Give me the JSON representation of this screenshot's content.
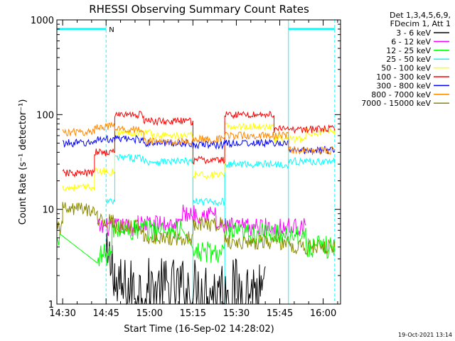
{
  "chart_data": {
    "type": "line",
    "title": "RHESSI Observing Summary Count Rates",
    "xlabel": "Start Time (16-Sep-02 14:28:02)",
    "ylabel": "Count Rate (s⁻¹ detector⁻¹)",
    "yscale": "log",
    "ylim": [
      1,
      1000
    ],
    "xlim_minutes_after_14_28": [
      0,
      98
    ],
    "x_ticks": [
      "14:30",
      "14:45",
      "15:00",
      "15:15",
      "15:30",
      "15:45",
      "16:00"
    ],
    "y_ticks": [
      "1",
      "10",
      "100",
      "1000"
    ],
    "legend_header": [
      "Det 1,3,4,5,6,9,",
      "FDecim 1, Att 1"
    ],
    "legend_position": "top-right",
    "series": [
      {
        "name": "3 - 6 keV",
        "color": "#000000",
        "segments": [
          [
            17,
            20,
            2.6
          ],
          [
            20,
            70,
            1.4
          ],
          [
            70,
            72,
            1.2
          ]
        ]
      },
      {
        "name": "6 - 12 keV",
        "color": "#ff00ff",
        "segments": [
          [
            14,
            28,
            6.5
          ],
          [
            28,
            43,
            7.0
          ],
          [
            43,
            55,
            9.0
          ],
          [
            55,
            86,
            6.5
          ]
        ]
      },
      {
        "name": "12 - 25 keV",
        "color": "#00ff00",
        "segments": [
          [
            0,
            1,
            4.5
          ],
          [
            14,
            19,
            3.3
          ],
          [
            19,
            43,
            6.0
          ],
          [
            47,
            58,
            3.5
          ],
          [
            58,
            86,
            5.5
          ],
          [
            86,
            96,
            4.0
          ]
        ]
      },
      {
        "name": "25 - 50 keV",
        "color": "#00ffff",
        "segments": [
          [
            17,
            20,
            12
          ],
          [
            20,
            30,
            35
          ],
          [
            30,
            47,
            32
          ],
          [
            47,
            58,
            12
          ],
          [
            58,
            80,
            30
          ],
          [
            80,
            96,
            32
          ]
        ]
      },
      {
        "name": "50 - 100 keV",
        "color": "#ffff00",
        "segments": [
          [
            2,
            13,
            17
          ],
          [
            13,
            20,
            25
          ],
          [
            20,
            33,
            65
          ],
          [
            33,
            47,
            60
          ],
          [
            47,
            58,
            23
          ],
          [
            58,
            75,
            75
          ],
          [
            75,
            86,
            55
          ],
          [
            86,
            96,
            65
          ]
        ]
      },
      {
        "name": "100 - 300 keV",
        "color": "#ff0000",
        "segments": [
          [
            2,
            13,
            24
          ],
          [
            13,
            20,
            40
          ],
          [
            20,
            30,
            100
          ],
          [
            30,
            47,
            85
          ],
          [
            47,
            58,
            33
          ],
          [
            58,
            75,
            100
          ],
          [
            75,
            86,
            70
          ],
          [
            86,
            96,
            70
          ]
        ]
      },
      {
        "name": "300 - 800 keV",
        "color": "#0000ff",
        "segments": [
          [
            2,
            13,
            50
          ],
          [
            13,
            20,
            55
          ],
          [
            20,
            30,
            55
          ],
          [
            30,
            47,
            50
          ],
          [
            47,
            58,
            48
          ],
          [
            58,
            80,
            50
          ],
          [
            80,
            96,
            42
          ]
        ]
      },
      {
        "name": "800 - 7000 keV",
        "color": "#ff8800",
        "segments": [
          [
            2,
            13,
            65
          ],
          [
            13,
            20,
            75
          ],
          [
            20,
            30,
            70
          ],
          [
            30,
            47,
            52
          ],
          [
            47,
            58,
            55
          ],
          [
            58,
            80,
            60
          ],
          [
            80,
            96,
            42
          ]
        ]
      },
      {
        "name": "7000 - 15000 keV",
        "color": "#888800",
        "segments": [
          [
            0,
            2,
            6.5
          ],
          [
            2,
            14,
            10
          ],
          [
            14,
            20,
            7.5
          ],
          [
            20,
            30,
            6.5
          ],
          [
            30,
            47,
            5.0
          ],
          [
            47,
            58,
            7.0
          ],
          [
            58,
            80,
            4.5
          ],
          [
            80,
            96,
            4.0
          ]
        ]
      }
    ],
    "markers": {
      "boxes": [
        {
          "start": 0,
          "end": 17,
          "color": "#00ffff"
        },
        {
          "start": 80,
          "end": 96,
          "color": "#00ffff"
        }
      ],
      "cyan_verticals": [
        47,
        58
      ],
      "top_label": "N"
    }
  },
  "timestamp": "19-Oct-2021 13:14"
}
